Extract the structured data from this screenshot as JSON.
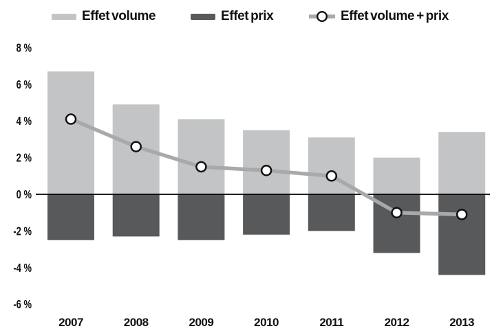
{
  "legend": {
    "items": [
      {
        "label": "Effet volume"
      },
      {
        "label": "Effet prix"
      },
      {
        "label": "Effet volume + prix"
      }
    ]
  },
  "chart_data": {
    "type": "bar",
    "subtype": "bar+line combo",
    "title": "",
    "categories": [
      "2007",
      "2008",
      "2009",
      "2010",
      "2011",
      "2012",
      "2013"
    ],
    "series": [
      {
        "name": "Effet volume",
        "type": "bar",
        "color": "#c3c4c6",
        "values": [
          6.7,
          4.9,
          4.1,
          3.5,
          3.1,
          2.0,
          3.4
        ]
      },
      {
        "name": "Effet prix",
        "type": "bar",
        "color": "#58595b",
        "values": [
          -2.5,
          -2.3,
          -2.5,
          -2.2,
          -2.0,
          -3.2,
          -4.4
        ]
      },
      {
        "name": "Effet volume + prix",
        "type": "line",
        "color": "#a8a9ab",
        "marker_fill": "#ffffff",
        "marker_stroke": "#111111",
        "values": [
          4.1,
          2.6,
          1.5,
          1.3,
          1.0,
          -1.0,
          -1.1
        ]
      }
    ],
    "ylim": [
      -6,
      8
    ],
    "ytick_values": [
      8,
      6,
      4,
      2,
      0,
      -2,
      -4,
      -6
    ],
    "ytick_labels": [
      "8 %",
      "6 %",
      "4 %",
      "2 %",
      "0 %",
      "-2 %",
      "-4 %",
      "-6 %"
    ],
    "unit": "%",
    "grid": false,
    "legend_position": "top",
    "zero_axis_color": "#000000",
    "background": "#ffffff"
  }
}
